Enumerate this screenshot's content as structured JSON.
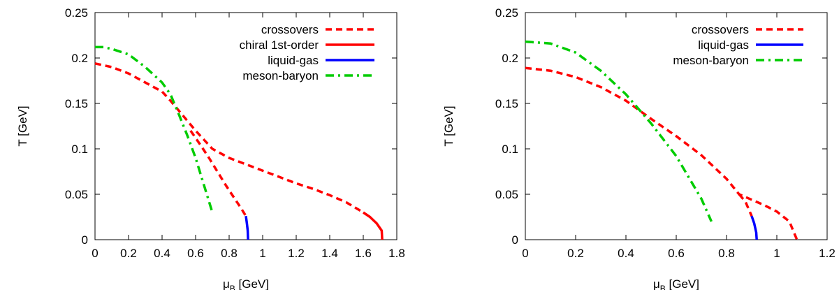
{
  "chart_data": [
    {
      "type": "line",
      "xlabel": "μB [GeV]",
      "xlabel_main": "μ",
      "xlabel_sub": "B",
      "xlabel_rest": " [GeV]",
      "ylabel": "T [GeV]",
      "xlim": [
        0,
        1.8
      ],
      "ylim": [
        0,
        0.25
      ],
      "xticks": [
        "0",
        "0.2",
        "0.4",
        "0.6",
        "0.8",
        "1",
        "1.2",
        "1.4",
        "1.6",
        "1.8"
      ],
      "yticks": [
        "0",
        "0.05",
        "0.1",
        "0.15",
        "0.2",
        "0.25"
      ],
      "legend_position": "top-right",
      "series": [
        {
          "name": "crossovers",
          "color": "#ff0000",
          "dash": "dashed",
          "segments": [
            [
              [
                0,
                0.194
              ],
              [
                0.1,
                0.19
              ],
              [
                0.2,
                0.183
              ],
              [
                0.3,
                0.173
              ],
              [
                0.4,
                0.163
              ],
              [
                0.45,
                0.153
              ],
              [
                0.5,
                0.142
              ],
              [
                0.55,
                0.131
              ],
              [
                0.6,
                0.12
              ],
              [
                0.65,
                0.11
              ],
              [
                0.7,
                0.1
              ],
              [
                0.8,
                0.09
              ],
              [
                0.9,
                0.083
              ],
              [
                1.0,
                0.076
              ],
              [
                1.1,
                0.069
              ],
              [
                1.2,
                0.062
              ],
              [
                1.3,
                0.056
              ],
              [
                1.4,
                0.049
              ],
              [
                1.5,
                0.041
              ],
              [
                1.6,
                0.03
              ]
            ],
            [
              [
                0.57,
                0.12
              ],
              [
                0.63,
                0.104
              ],
              [
                0.68,
                0.09
              ],
              [
                0.73,
                0.075
              ],
              [
                0.78,
                0.06
              ],
              [
                0.83,
                0.046
              ],
              [
                0.87,
                0.035
              ],
              [
                0.9,
                0.026
              ]
            ]
          ]
        },
        {
          "name": "chiral 1st-order",
          "color": "#ff0000",
          "dash": "solid",
          "segments": [
            [
              [
                1.6,
                0.03
              ],
              [
                1.64,
                0.025
              ],
              [
                1.68,
                0.018
              ],
              [
                1.71,
                0.01
              ],
              [
                1.713,
                0
              ]
            ]
          ]
        },
        {
          "name": "liquid-gas",
          "color": "#0000ff",
          "dash": "solid",
          "segments": [
            [
              [
                0.9,
                0.026
              ],
              [
                0.906,
                0.018
              ],
              [
                0.911,
                0.01
              ],
              [
                0.913,
                0
              ]
            ]
          ]
        },
        {
          "name": "meson-baryon",
          "color": "#00cc00",
          "dash": "dashdot",
          "segments": [
            [
              [
                0,
                0.212
              ],
              [
                0.05,
                0.212
              ],
              [
                0.1,
                0.21
              ],
              [
                0.2,
                0.204
              ],
              [
                0.3,
                0.19
              ],
              [
                0.4,
                0.173
              ],
              [
                0.45,
                0.16
              ],
              [
                0.5,
                0.138
              ],
              [
                0.55,
                0.115
              ],
              [
                0.6,
                0.09
              ],
              [
                0.65,
                0.06
              ],
              [
                0.7,
                0.03
              ]
            ]
          ]
        }
      ]
    },
    {
      "type": "line",
      "xlabel": "μB [GeV]",
      "xlabel_main": "μ",
      "xlabel_sub": "B",
      "xlabel_rest": " [GeV]",
      "ylabel": "T [GeV]",
      "xlim": [
        0,
        1.2
      ],
      "ylim": [
        0,
        0.25
      ],
      "xticks": [
        "0",
        "0.2",
        "0.4",
        "0.6",
        "0.8",
        "1",
        "1.2"
      ],
      "yticks": [
        "0",
        "0.05",
        "0.1",
        "0.15",
        "0.2",
        "0.25"
      ],
      "legend_position": "top-right",
      "series": [
        {
          "name": "crossovers",
          "color": "#ff0000",
          "dash": "dashed",
          "segments": [
            [
              [
                0,
                0.189
              ],
              [
                0.1,
                0.186
              ],
              [
                0.2,
                0.179
              ],
              [
                0.3,
                0.168
              ],
              [
                0.4,
                0.153
              ],
              [
                0.5,
                0.133
              ],
              [
                0.6,
                0.114
              ],
              [
                0.7,
                0.093
              ],
              [
                0.8,
                0.067
              ],
              [
                0.85,
                0.05
              ],
              [
                0.9,
                0.044
              ],
              [
                0.95,
                0.038
              ],
              [
                1.0,
                0.031
              ],
              [
                1.05,
                0.02
              ],
              [
                1.08,
                0
              ]
            ],
            [
              [
                0.85,
                0.05
              ],
              [
                0.875,
                0.042
              ],
              [
                0.9,
                0.026
              ]
            ]
          ]
        },
        {
          "name": "liquid-gas",
          "color": "#0000ff",
          "dash": "solid",
          "segments": [
            [
              [
                0.9,
                0.026
              ],
              [
                0.91,
                0.018
              ],
              [
                0.918,
                0.008
              ],
              [
                0.92,
                0
              ]
            ]
          ]
        },
        {
          "name": "meson-baryon",
          "color": "#00cc00",
          "dash": "dashdot",
          "segments": [
            [
              [
                0,
                0.218
              ],
              [
                0.1,
                0.216
              ],
              [
                0.2,
                0.206
              ],
              [
                0.3,
                0.186
              ],
              [
                0.4,
                0.16
              ],
              [
                0.5,
                0.128
              ],
              [
                0.6,
                0.092
              ],
              [
                0.7,
                0.045
              ],
              [
                0.74,
                0.02
              ]
            ]
          ]
        }
      ]
    }
  ]
}
